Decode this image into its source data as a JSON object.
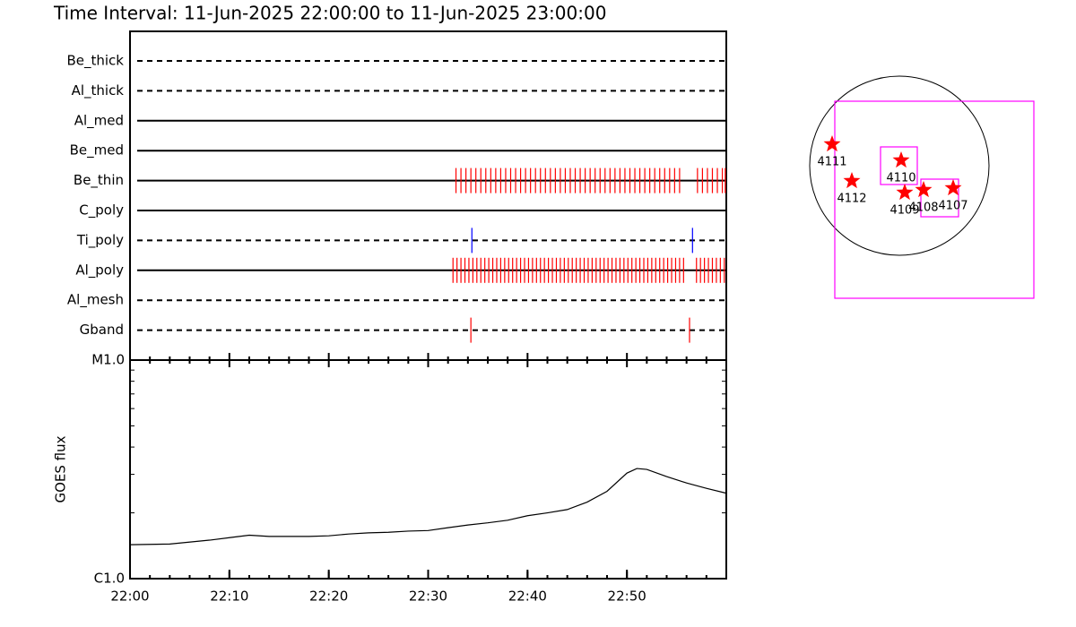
{
  "chart_data": [
    {
      "type": "timeline",
      "title": "Time Interval: 11-Jun-2025 22:00:00 to 11-Jun-2025 23:00:00",
      "xlim": [
        0,
        60
      ],
      "rows": [
        {
          "label": "Be_thick",
          "dashed": true,
          "times": []
        },
        {
          "label": "Al_thick",
          "dashed": true,
          "times": []
        },
        {
          "label": "Al_med",
          "dashed": false,
          "times": []
        },
        {
          "label": "Be_med",
          "dashed": false,
          "times": []
        },
        {
          "label": "Be_thin",
          "dashed": false,
          "color": "#ff0000",
          "times": [
            32.8,
            33.3,
            33.8,
            34.3,
            34.8,
            35.3,
            35.8,
            36.3,
            36.8,
            37.3,
            37.8,
            38.3,
            38.8,
            39.3,
            39.8,
            40.3,
            40.8,
            41.3,
            41.8,
            42.3,
            42.8,
            43.3,
            43.8,
            44.3,
            44.8,
            45.3,
            45.8,
            46.3,
            46.8,
            47.3,
            47.8,
            48.3,
            48.8,
            49.3,
            49.8,
            50.3,
            50.8,
            51.3,
            51.8,
            52.3,
            52.8,
            53.3,
            53.8,
            54.3,
            54.8,
            55.3,
            57.1,
            57.6,
            58.1,
            58.6,
            59.1,
            59.6,
            59.9
          ]
        },
        {
          "label": "C_poly",
          "dashed": false,
          "times": []
        },
        {
          "label": "Ti_poly",
          "dashed": true,
          "color": "#0000ff",
          "times": [
            34.4,
            56.6
          ]
        },
        {
          "label": "Al_poly",
          "dashed": false,
          "color": "#ff0000",
          "times": [
            32.5,
            32.9,
            33.3,
            33.7,
            34.1,
            34.5,
            34.9,
            35.3,
            35.7,
            36.1,
            36.5,
            36.9,
            37.3,
            37.7,
            38.1,
            38.5,
            38.9,
            39.3,
            39.7,
            40.1,
            40.5,
            40.9,
            41.3,
            41.7,
            42.1,
            42.5,
            42.9,
            43.3,
            43.7,
            44.1,
            44.5,
            44.9,
            45.3,
            45.7,
            46.1,
            46.5,
            46.9,
            47.3,
            47.7,
            48.1,
            48.5,
            48.9,
            49.3,
            49.7,
            50.1,
            50.5,
            50.9,
            51.3,
            51.7,
            52.1,
            52.5,
            52.9,
            53.3,
            53.7,
            54.1,
            54.5,
            54.9,
            55.3,
            55.7,
            57.0,
            57.4,
            57.8,
            58.2,
            58.6,
            59.0,
            59.4,
            59.8
          ]
        },
        {
          "label": "Al_mesh",
          "dashed": true,
          "times": []
        },
        {
          "label": "Gband",
          "dashed": true,
          "color": "#ff0000",
          "times": [
            34.3,
            56.3
          ]
        }
      ]
    },
    {
      "type": "line",
      "ylabel": "GOES flux",
      "log": true,
      "color": "#000000",
      "xlim": [
        0,
        60
      ],
      "xticks": [
        {
          "value": 0,
          "label": "22:00"
        },
        {
          "value": 10,
          "label": "22:10"
        },
        {
          "value": 20,
          "label": "22:20"
        },
        {
          "value": 30,
          "label": "22:30"
        },
        {
          "value": 40,
          "label": "22:40"
        },
        {
          "value": 50,
          "label": "22:50"
        }
      ],
      "ylim": [
        1e-06,
        1e-05
      ],
      "yticks": [
        {
          "value": 1e-06,
          "label": "C1.0"
        },
        {
          "value": 1e-05,
          "label": "M1.0"
        }
      ],
      "x": [
        0,
        4,
        8,
        10,
        12,
        14,
        16,
        18,
        20,
        22,
        24,
        26,
        28,
        30,
        32,
        34,
        36,
        38,
        40,
        42,
        44,
        46,
        48,
        50,
        51,
        52,
        54,
        56,
        58,
        60
      ],
      "values": [
        1.43e-06,
        1.44e-06,
        1.5e-06,
        1.54e-06,
        1.58e-06,
        1.56e-06,
        1.56e-06,
        1.56e-06,
        1.57e-06,
        1.6e-06,
        1.62e-06,
        1.63e-06,
        1.65e-06,
        1.66e-06,
        1.71e-06,
        1.76e-06,
        1.8e-06,
        1.85e-06,
        1.94e-06,
        2e-06,
        2.07e-06,
        2.24e-06,
        2.51e-06,
        3.04e-06,
        3.19e-06,
        3.16e-06,
        2.93e-06,
        2.74e-06,
        2.59e-06,
        2.46e-06
      ]
    },
    {
      "type": "map",
      "star_color": "#ff0000",
      "box_color": "#ff00ff",
      "regions": [
        {
          "label": "4111"
        },
        {
          "label": "4112"
        },
        {
          "label": "4110"
        },
        {
          "label": "4109"
        },
        {
          "label": "4108"
        },
        {
          "label": "4107"
        }
      ]
    }
  ]
}
